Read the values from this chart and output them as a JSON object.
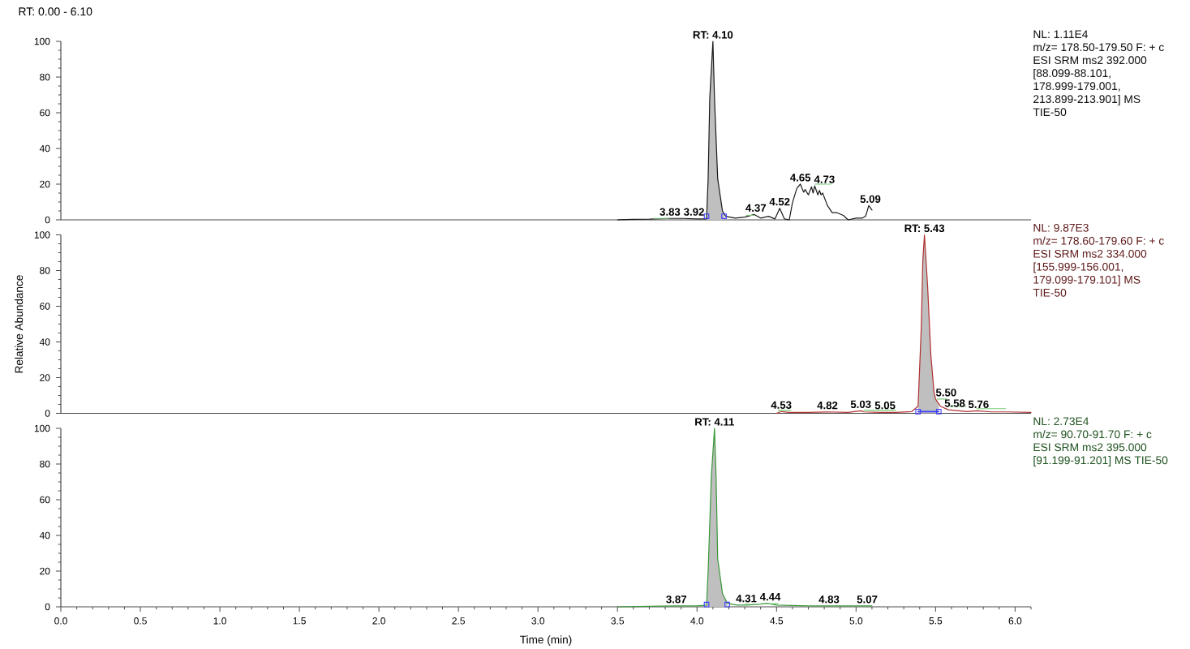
{
  "chart_data": [
    {
      "type": "line",
      "title": "RT: 0.00 - 6.10",
      "xlim": [
        0,
        6.1
      ],
      "ylim": [
        0,
        100
      ],
      "tick_labels": "y",
      "yticks": [
        0,
        {
          "value": 5,
          "label": null
        },
        {
          "value": 10,
          "label": null
        },
        {
          "value": 15,
          "label": null
        },
        20,
        {
          "value": 25,
          "label": null
        },
        {
          "value": 30,
          "label": null
        },
        {
          "value": 35,
          "label": null
        },
        40,
        {
          "value": 45,
          "label": null
        },
        {
          "value": 50,
          "label": null
        },
        {
          "value": 55,
          "label": null
        },
        60,
        {
          "value": 65,
          "label": null
        },
        {
          "value": 70,
          "label": null
        },
        {
          "value": 75,
          "label": null
        },
        80,
        {
          "value": 85,
          "label": null
        },
        {
          "value": 90,
          "label": null
        },
        {
          "value": 95,
          "label": null
        },
        100
      ],
      "series": [
        {
          "type": "area",
          "color": "#bfbfbf",
          "x": [
            4.06,
            4.07,
            4.08,
            4.1,
            4.11,
            4.13,
            4.16,
            4.17
          ],
          "values": [
            0.5,
            23,
            68,
            100,
            68,
            23,
            5,
            3.5
          ]
        },
        {
          "color": "#1a1a1a",
          "x": [
            3.5,
            3.6,
            3.7,
            3.83,
            3.92,
            4.0,
            4.06,
            4.07,
            4.08,
            4.1,
            4.11,
            4.13,
            4.16,
            4.18,
            4.24,
            4.3,
            4.36,
            4.4,
            4.45,
            4.49,
            4.52,
            4.55,
            4.58,
            4.6,
            4.62,
            4.63,
            4.65,
            4.67,
            4.68,
            4.7,
            4.72,
            4.73,
            4.74,
            4.76,
            4.77,
            4.78,
            4.79,
            4.82,
            4.85,
            4.88,
            4.92,
            4.95,
            5.0,
            5.04,
            5.06,
            5.08,
            5.1
          ],
          "values": [
            0,
            0.3,
            0.4,
            0.8,
            0.8,
            0.5,
            0.5,
            23,
            68,
            100,
            68,
            23,
            5,
            2,
            1,
            1.5,
            3,
            1,
            2,
            0.5,
            6.5,
            0.5,
            0,
            9.5,
            15.5,
            18,
            20,
            15.5,
            17,
            14,
            18.5,
            15,
            19,
            14,
            16.5,
            14,
            15,
            8,
            4,
            4,
            2.5,
            0,
            1,
            1,
            2,
            8,
            5.5
          ]
        },
        {
          "type": "line",
          "color": "#7acc7a",
          "x": [
            3.73,
            3.82,
            3.83,
            4.31,
            4.36,
            4.37,
            4.74,
            4.84
          ],
          "values": [
            0.8,
            0.8,
            null,
            2.5,
            2.5,
            null,
            20,
            20
          ]
        },
        {
          "type": "scatter",
          "color": "#3c3cff",
          "marker": "square",
          "x": [
            4.06,
            4.17
          ],
          "values": [
            2,
            2
          ]
        }
      ],
      "annotations": [
        {
          "text": "RT: 4.10",
          "x": 4.1,
          "y": 100
        },
        {
          "text": "3.83",
          "x": 3.83,
          "y": 0.8
        },
        {
          "text": "3.92",
          "x": 3.92,
          "y": 0.8
        },
        {
          "text": "4.37",
          "x": 4.37,
          "y": 3
        },
        {
          "text": "4.52",
          "x": 4.52,
          "y": 6.5
        },
        {
          "text": "4.65",
          "x": 4.65,
          "y": 20
        },
        {
          "text": "4.73",
          "x": 4.73,
          "y": 19
        },
        {
          "text": "5.09",
          "x": 5.09,
          "y": 8
        },
        "NL: 1.11E4",
        "m/z= 178.50-179.50 F: + c",
        "ESI SRM ms2 392.000",
        "[88.099-88.101,",
        "178.999-179.001,",
        "213.899-213.901] MS",
        "TIE-50"
      ]
    },
    {
      "type": "line",
      "ylabel": "Relative Abundance",
      "xlim": [
        0,
        6.1
      ],
      "ylim": [
        0,
        100
      ],
      "tick_labels": "y",
      "yticks": [
        0,
        {
          "value": 5,
          "label": null
        },
        {
          "value": 10,
          "label": null
        },
        {
          "value": 15,
          "label": null
        },
        20,
        {
          "value": 25,
          "label": null
        },
        {
          "value": 30,
          "label": null
        },
        {
          "value": 35,
          "label": null
        },
        40,
        {
          "value": 45,
          "label": null
        },
        {
          "value": 50,
          "label": null
        },
        {
          "value": 55,
          "label": null
        },
        60,
        {
          "value": 65,
          "label": null
        },
        {
          "value": 70,
          "label": null
        },
        {
          "value": 75,
          "label": null
        },
        80,
        {
          "value": 85,
          "label": null
        },
        {
          "value": 90,
          "label": null
        },
        {
          "value": 95,
          "label": null
        },
        100
      ],
      "series": [
        {
          "type": "area",
          "color": "#bfbfbf",
          "x": [
            5.39,
            5.41,
            5.42,
            5.43,
            5.45,
            5.47,
            5.49,
            5.5,
            5.52
          ],
          "values": [
            4,
            48,
            86,
            100,
            71,
            33,
            12,
            8,
            5
          ]
        },
        {
          "color": "#b03030",
          "x": [
            4.5,
            4.53,
            4.58,
            4.7,
            4.82,
            4.95,
            5.03,
            5.05,
            5.15,
            5.25,
            5.35,
            5.39,
            5.41,
            5.42,
            5.43,
            5.45,
            5.47,
            5.49,
            5.5,
            5.53,
            5.58,
            5.64,
            5.7,
            5.76,
            5.85,
            5.95,
            6.1
          ],
          "values": [
            0,
            1,
            0.5,
            0.5,
            0.8,
            0.5,
            1.4,
            0.8,
            0.5,
            0.5,
            1,
            4,
            48,
            86,
            100,
            71,
            33,
            12,
            8,
            4,
            2,
            1.5,
            1,
            1.4,
            0.8,
            0.8,
            0.5
          ]
        },
        {
          "type": "line",
          "color": "#7acc7a",
          "x": [
            4.51,
            4.59,
            4.6,
            5.05,
            5.25,
            5.26,
            5.51,
            5.57,
            5.58,
            5.59,
            5.69,
            5.7,
            5.76,
            5.94
          ],
          "values": [
            1.8,
            1.8,
            null,
            1.8,
            1.8,
            null,
            8,
            8,
            null,
            4,
            4,
            null,
            2.6,
            2.6
          ]
        },
        {
          "type": "scatter",
          "color": "#3c3cff",
          "marker": "square",
          "x": [
            5.39,
            5.52
          ],
          "values": [
            1,
            1
          ]
        },
        {
          "type": "line",
          "color": "#3c3cff",
          "x": [
            5.39,
            5.52
          ],
          "values": [
            1,
            1
          ]
        }
      ],
      "annotations": [
        {
          "text": "RT: 5.43",
          "x": 5.43,
          "y": 100
        },
        {
          "text": "4.53",
          "x": 4.53,
          "y": 1
        },
        {
          "text": "4.82",
          "x": 4.82,
          "y": 0.8
        },
        {
          "text": "5.03",
          "x": 5.03,
          "y": 1.4
        },
        {
          "text": "5.05",
          "x": 5.05,
          "y": 0.8
        },
        {
          "text": "5.50",
          "x": 5.5,
          "y": 8
        },
        {
          "text": "5.58",
          "x": 5.58,
          "y": 2
        },
        {
          "text": "5.76",
          "x": 5.76,
          "y": 1.4
        },
        "NL: 9.87E3",
        "m/z= 178.60-179.60 F: + c",
        "ESI SRM ms2 334.000",
        "[155.999-156.001,",
        "179.099-179.101] MS",
        "TIE-50"
      ]
    },
    {
      "type": "line",
      "xlabel": "Time (min)",
      "xlim": [
        0,
        6.1
      ],
      "ylim": [
        0,
        100
      ],
      "xticks": [
        {
          "value": 0,
          "label": "0.0"
        },
        {
          "value": 0.1,
          "label": null
        },
        {
          "value": 0.2,
          "label": null
        },
        {
          "value": 0.3,
          "label": null
        },
        {
          "value": 0.4,
          "label": null
        },
        {
          "value": 0.5,
          "label": "0.5"
        },
        {
          "value": 0.6,
          "label": null
        },
        {
          "value": 0.7,
          "label": null
        },
        {
          "value": 0.8,
          "label": null
        },
        {
          "value": 0.9,
          "label": null
        },
        {
          "value": 1,
          "label": "1.0"
        },
        {
          "value": 1.1,
          "label": null
        },
        {
          "value": 1.2,
          "label": null
        },
        {
          "value": 1.3,
          "label": null
        },
        {
          "value": 1.4,
          "label": null
        },
        {
          "value": 1.5,
          "label": "1.5"
        },
        {
          "value": 1.6,
          "label": null
        },
        {
          "value": 1.7,
          "label": null
        },
        {
          "value": 1.8,
          "label": null
        },
        {
          "value": 1.9,
          "label": null
        },
        {
          "value": 2,
          "label": "2.0"
        },
        {
          "value": 2.1,
          "label": null
        },
        {
          "value": 2.2,
          "label": null
        },
        {
          "value": 2.3,
          "label": null
        },
        {
          "value": 2.4,
          "label": null
        },
        {
          "value": 2.5,
          "label": "2.5"
        },
        {
          "value": 2.6,
          "label": null
        },
        {
          "value": 2.7,
          "label": null
        },
        {
          "value": 2.8,
          "label": null
        },
        {
          "value": 2.9,
          "label": null
        },
        {
          "value": 3,
          "label": "3.0"
        },
        {
          "value": 3.1,
          "label": null
        },
        {
          "value": 3.2,
          "label": null
        },
        {
          "value": 3.3,
          "label": null
        },
        {
          "value": 3.4,
          "label": null
        },
        {
          "value": 3.5,
          "label": "3.5"
        },
        {
          "value": 3.6,
          "label": null
        },
        {
          "value": 3.7,
          "label": null
        },
        {
          "value": 3.8,
          "label": null
        },
        {
          "value": 3.9,
          "label": null
        },
        {
          "value": 4,
          "label": "4.0"
        },
        {
          "value": 4.1,
          "label": null
        },
        {
          "value": 4.2,
          "label": null
        },
        {
          "value": 4.3,
          "label": null
        },
        {
          "value": 4.4,
          "label": null
        },
        {
          "value": 4.5,
          "label": "4.5"
        },
        {
          "value": 4.6,
          "label": null
        },
        {
          "value": 4.7,
          "label": null
        },
        {
          "value": 4.8,
          "label": null
        },
        {
          "value": 4.9,
          "label": null
        },
        {
          "value": 5,
          "label": "5.0"
        },
        {
          "value": 5.1,
          "label": null
        },
        {
          "value": 5.2,
          "label": null
        },
        {
          "value": 5.3,
          "label": null
        },
        {
          "value": 5.4,
          "label": null
        },
        {
          "value": 5.5,
          "label": "5.5"
        },
        {
          "value": 5.6,
          "label": null
        },
        {
          "value": 5.7,
          "label": null
        },
        {
          "value": 5.8,
          "label": null
        },
        {
          "value": 5.9,
          "label": null
        },
        {
          "value": 6,
          "label": "6.0"
        },
        {
          "value": 6.1,
          "label": null
        }
      ],
      "yticks": [
        0,
        {
          "value": 5,
          "label": null
        },
        {
          "value": 10,
          "label": null
        },
        {
          "value": 15,
          "label": null
        },
        20,
        {
          "value": 25,
          "label": null
        },
        {
          "value": 30,
          "label": null
        },
        {
          "value": 35,
          "label": null
        },
        40,
        {
          "value": 45,
          "label": null
        },
        {
          "value": 50,
          "label": null
        },
        {
          "value": 55,
          "label": null
        },
        60,
        {
          "value": 65,
          "label": null
        },
        {
          "value": 70,
          "label": null
        },
        {
          "value": 75,
          "label": null
        },
        80,
        {
          "value": 85,
          "label": null
        },
        {
          "value": 90,
          "label": null
        },
        {
          "value": 95,
          "label": null
        },
        100
      ],
      "series": [
        {
          "type": "area",
          "color": "#bfbfbf",
          "x": [
            4.06,
            4.07,
            4.09,
            4.11,
            4.12,
            4.13,
            4.16,
            4.19
          ],
          "values": [
            1,
            20,
            73,
            100,
            73,
            27,
            7.5,
            2
          ]
        },
        {
          "color": "#3a963a",
          "x": [
            3.5,
            3.7,
            3.87,
            4.0,
            4.06,
            4.07,
            4.09,
            4.11,
            4.12,
            4.13,
            4.16,
            4.19,
            4.25,
            4.31,
            4.4,
            4.44,
            4.5,
            4.7,
            4.83,
            5.0,
            5.07,
            5.1
          ],
          "values": [
            0,
            0.3,
            0.5,
            0.5,
            1,
            20,
            73,
            100,
            73,
            27,
            7.5,
            2,
            1,
            1,
            1.5,
            2,
            1,
            0.5,
            0.5,
            0.5,
            0.5,
            0.5
          ]
        },
        {
          "type": "line",
          "color": "#7acc7a",
          "x": [
            4.3,
            4.33,
            4.34,
            4.44,
            4.51
          ],
          "values": [
            1.4,
            1.4,
            null,
            1.8,
            1.8
          ]
        },
        {
          "type": "scatter",
          "color": "#3c3cff",
          "marker": "square",
          "x": [
            4.06,
            4.19
          ],
          "values": [
            1.3,
            1.3
          ]
        }
      ],
      "annotations": [
        {
          "text": "RT: 4.11",
          "x": 4.11,
          "y": 100
        },
        {
          "text": "3.87",
          "x": 3.87,
          "y": 0.5
        },
        {
          "text": "4.31",
          "x": 4.31,
          "y": 1
        },
        {
          "text": "4.44",
          "x": 4.44,
          "y": 2
        },
        {
          "text": "4.83",
          "x": 4.83,
          "y": 0.5
        },
        {
          "text": "5.07",
          "x": 5.07,
          "y": 0.5
        },
        "NL: 2.73E4",
        "m/z= 90.70-91.70 F: + c",
        "ESI SRM ms2 395.000",
        "[91.199-91.201] MS TIE-50"
      ]
    }
  ]
}
